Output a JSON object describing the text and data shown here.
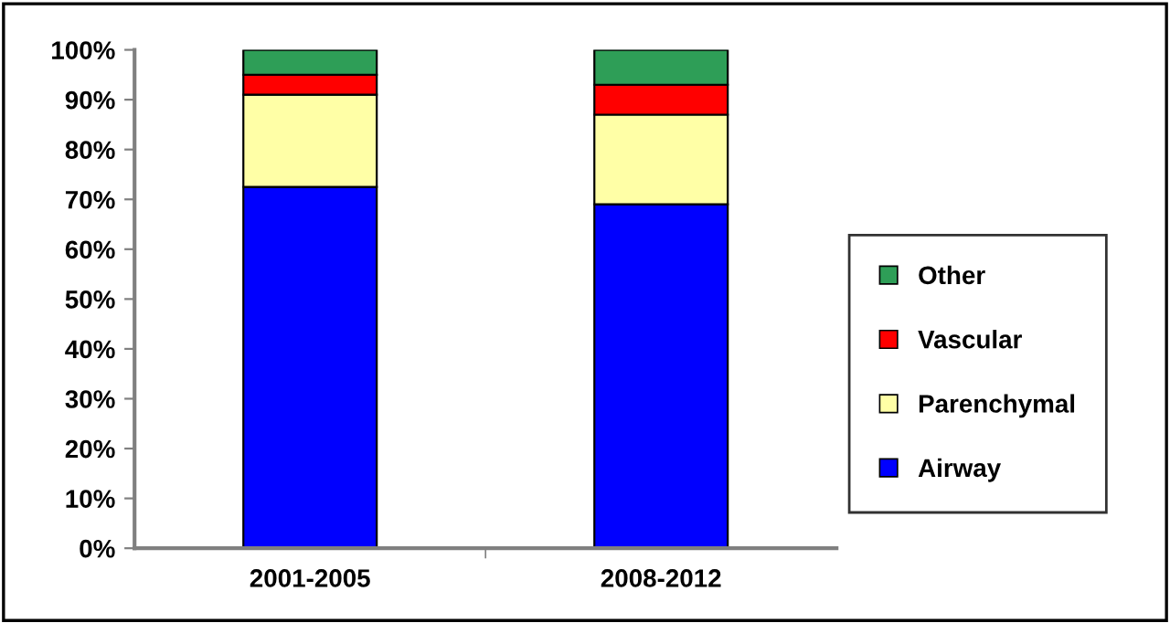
{
  "chart_data": {
    "type": "bar",
    "stacked": true,
    "categories": [
      "2001-2005",
      "2008-2012"
    ],
    "series": [
      {
        "name": "Airway",
        "color": "#0000ff",
        "values": [
          72.5,
          69
        ]
      },
      {
        "name": "Parenchymal",
        "color": "#ffffa6",
        "values": [
          18.5,
          18
        ]
      },
      {
        "name": "Vascular",
        "color": "#ff0000",
        "values": [
          4,
          6
        ]
      },
      {
        "name": "Other",
        "color": "#2e9e57",
        "values": [
          5,
          7
        ]
      }
    ],
    "ylim": [
      0,
      100
    ],
    "yticks": [
      {
        "value": 0,
        "label": "0%"
      },
      {
        "value": 10,
        "label": "10%"
      },
      {
        "value": 20,
        "label": "20%"
      },
      {
        "value": 30,
        "label": "30%"
      },
      {
        "value": 40,
        "label": "40%"
      },
      {
        "value": 50,
        "label": "50%"
      },
      {
        "value": 60,
        "label": "60%"
      },
      {
        "value": 70,
        "label": "70%"
      },
      {
        "value": 80,
        "label": "80%"
      },
      {
        "value": 90,
        "label": "90%"
      },
      {
        "value": 100,
        "label": "100%"
      }
    ],
    "grid": false,
    "legend": "right"
  }
}
